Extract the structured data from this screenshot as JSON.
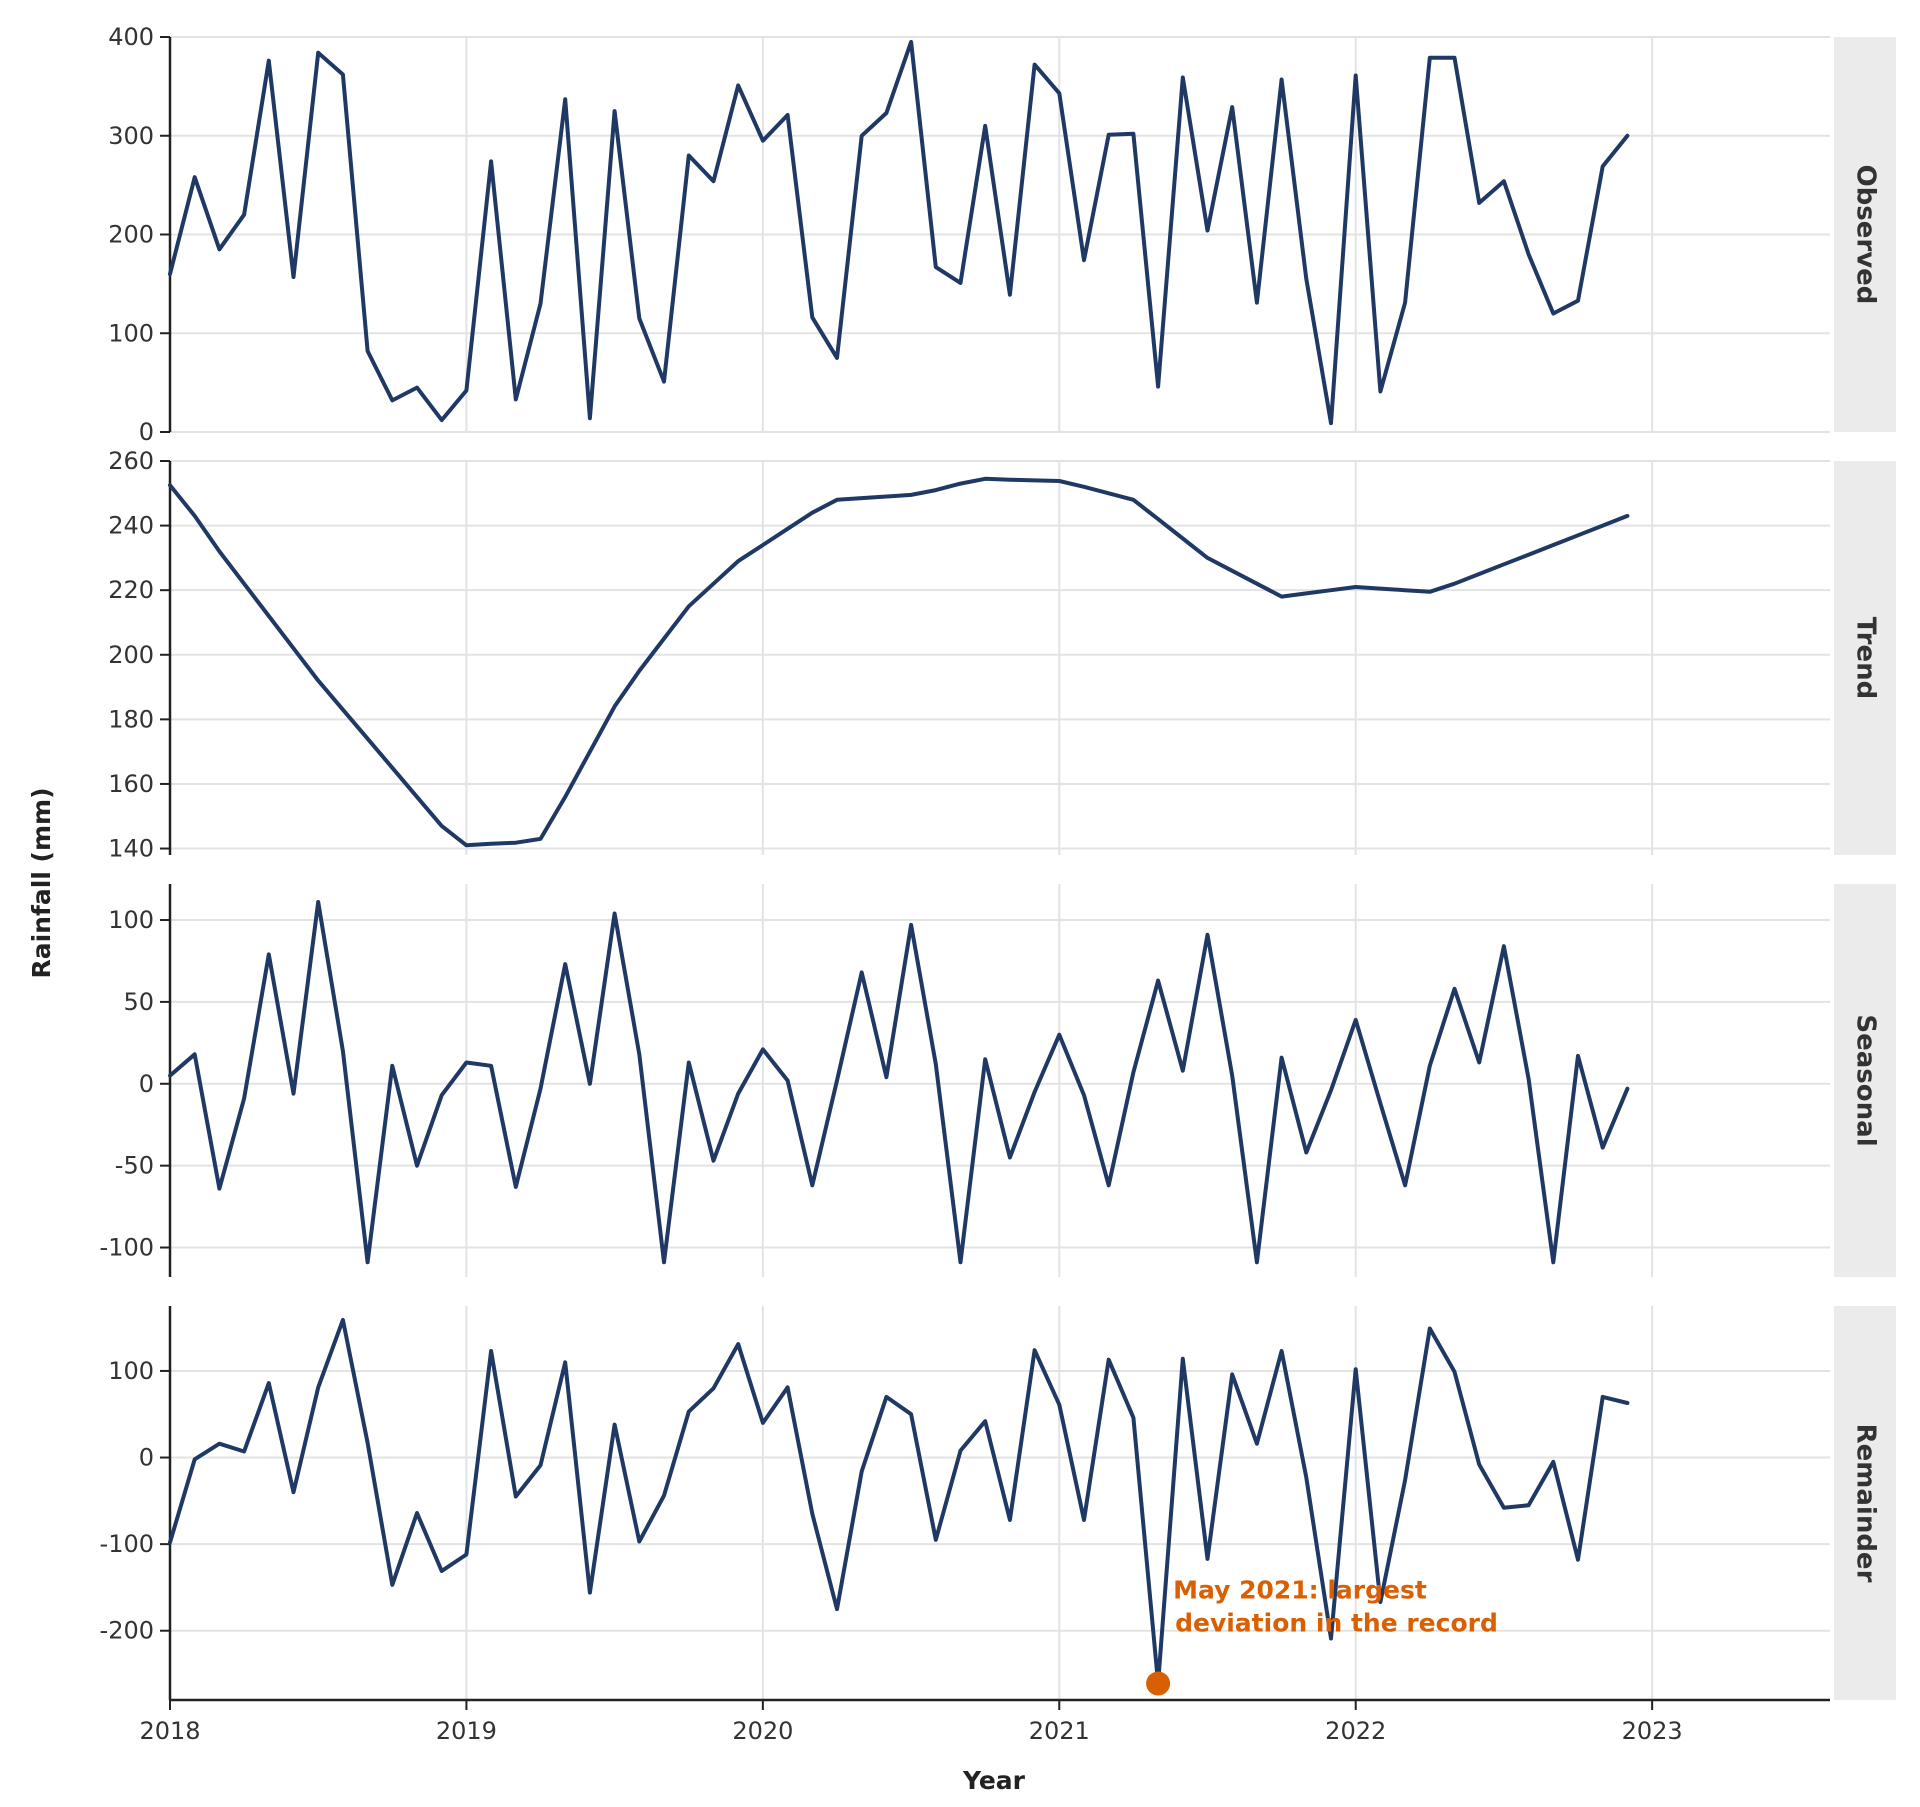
{
  "chart_data": {
    "type": "line",
    "xlabel": "Year",
    "ylabel": "Rainfall (mm)",
    "x_start": "2018-01",
    "x_frequency": "monthly",
    "xlim": [
      2018,
      2023.6
    ],
    "x_ticks": [
      2018,
      2019,
      2020,
      2021,
      2022,
      2023
    ],
    "x_tick_labels": [
      "2018",
      "2019",
      "2020",
      "2021",
      "2022",
      "2023"
    ],
    "line_color": "#1f3864",
    "annotation_color": "#d95f02",
    "strip_color": "#ebebeb",
    "grid": true,
    "panels": [
      {
        "name": "Observed",
        "ylim": [
          0,
          400
        ],
        "y_ticks": [
          0,
          100,
          200,
          300,
          400
        ],
        "y_tick_labels": [
          "0",
          "100",
          "200",
          "300",
          "400"
        ],
        "values": [
          160,
          258,
          185,
          220,
          376,
          157,
          384,
          362,
          82,
          32,
          45,
          12,
          42,
          274,
          33,
          130,
          337,
          14,
          325,
          115,
          51,
          280,
          254,
          351,
          295,
          321,
          116,
          75,
          300,
          323,
          395,
          167,
          151,
          310,
          139,
          372,
          343,
          174,
          301,
          302,
          46,
          359,
          204,
          329,
          131,
          357,
          155,
          9,
          361,
          41,
          131,
          379,
          379,
          232,
          254,
          180,
          120,
          133,
          269,
          300
        ]
      },
      {
        "name": "Trend",
        "ylim": [
          138,
          260
        ],
        "y_ticks": [
          140,
          160,
          180,
          200,
          220,
          240,
          260
        ],
        "y_tick_labels": [
          "140",
          "160",
          "180",
          "200",
          "220",
          "240",
          "260"
        ],
        "values": [
          252.5,
          243,
          232,
          222,
          212,
          202,
          192,
          183,
          174,
          165,
          156,
          147,
          141,
          141.5,
          141.8,
          143,
          156,
          170,
          184,
          195,
          205,
          215,
          222,
          229,
          234,
          239,
          244,
          248,
          248.5,
          249,
          249.5,
          251,
          253,
          254.5,
          254.2,
          254,
          253.8,
          252,
          250,
          248,
          242,
          236,
          230,
          226,
          222,
          218,
          219,
          220,
          221,
          220.5,
          220,
          219.5,
          222,
          225,
          228,
          231,
          234,
          237,
          240,
          243
        ]
      },
      {
        "name": "Seasonal",
        "ylim": [
          -118,
          122
        ],
        "y_ticks": [
          -100,
          -50,
          0,
          50,
          100
        ],
        "y_tick_labels": [
          "-100",
          "-50",
          "0",
          "50",
          "100"
        ],
        "values": [
          5,
          18,
          -64,
          -9,
          79,
          -6,
          111,
          20,
          -109,
          11,
          -50,
          -7,
          13,
          11,
          -63,
          -3,
          73,
          0,
          104,
          18,
          -109,
          13,
          -47,
          -6,
          21,
          2,
          -62,
          2,
          68,
          4,
          97,
          12,
          -109,
          15,
          -45,
          -5,
          30,
          -7,
          -62,
          7,
          63,
          8,
          91,
          5,
          -109,
          16,
          -42,
          -4,
          39,
          -12,
          -62,
          11,
          58,
          13,
          84,
          3,
          -109,
          17,
          -39,
          -3
        ]
      },
      {
        "name": "Remainder",
        "ylim": [
          -280,
          175
        ],
        "y_ticks": [
          -200,
          -100,
          0,
          100
        ],
        "y_tick_labels": [
          "-200",
          "-100",
          "0",
          "100"
        ],
        "values": [
          -98,
          -2,
          16,
          7,
          86,
          -40,
          81,
          159,
          17,
          -147,
          -64,
          -131,
          -112,
          123,
          -45,
          -9,
          110,
          -156,
          38,
          -97,
          -44,
          53,
          80,
          131,
          40,
          81,
          -65,
          -175,
          -16,
          70,
          50,
          -95,
          8,
          42,
          -72,
          124,
          61,
          -72,
          113,
          46,
          -261,
          114,
          -117,
          96,
          16,
          123,
          -23,
          -209,
          102,
          -167,
          -26,
          149,
          99,
          -8,
          -58,
          -55,
          -5,
          -118,
          70,
          63
        ],
        "annotation": {
          "index": 40,
          "text_line1": "May 2021: largest",
          "text_line2": "deviation in the record"
        }
      }
    ]
  }
}
